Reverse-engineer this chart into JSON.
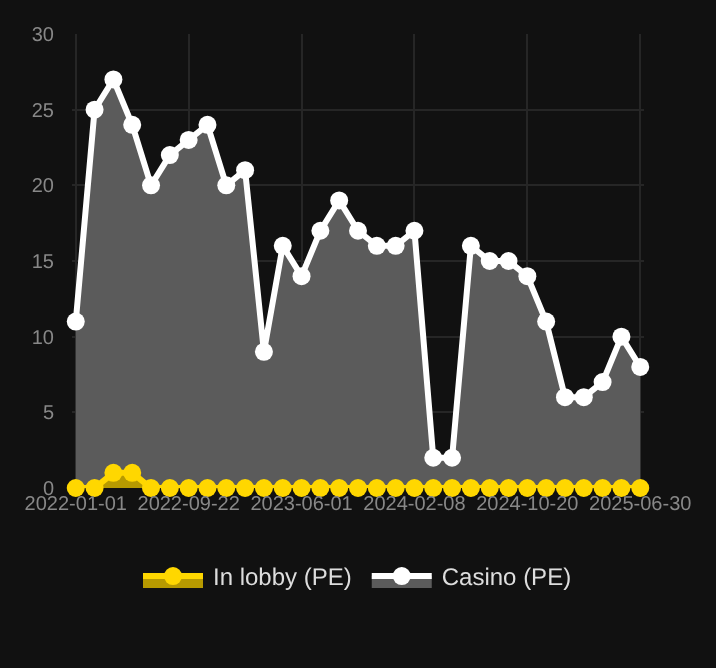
{
  "chart_data": {
    "type": "area",
    "categories": [
      "2022-01-01",
      null,
      null,
      null,
      null,
      null,
      "2022-09-22",
      null,
      null,
      null,
      null,
      null,
      "2023-06-01",
      null,
      null,
      null,
      null,
      null,
      "2024-02-08",
      null,
      null,
      null,
      null,
      null,
      "2024-10-20",
      null,
      null,
      null,
      null,
      null,
      "2025-06-30"
    ],
    "series": [
      {
        "name": "In lobby (PE)",
        "color": "#ffd700",
        "values": [
          0,
          0,
          1,
          1,
          0,
          0,
          0,
          0,
          0,
          0,
          0,
          0,
          0,
          0,
          0,
          0,
          0,
          0,
          0,
          0,
          0,
          0,
          0,
          0,
          0,
          0,
          0,
          0,
          0,
          0,
          0
        ]
      },
      {
        "name": "Casino (PE)",
        "color": "#ffffff",
        "values": [
          11,
          25,
          27,
          24,
          20,
          22,
          23,
          24,
          20,
          21,
          9,
          16,
          14,
          17,
          19,
          17,
          16,
          16,
          17,
          2,
          2,
          16,
          15,
          15,
          14,
          11,
          6,
          6,
          7,
          10,
          8
        ]
      }
    ],
    "ylim": [
      0,
      30
    ],
    "yticks": [
      0,
      5,
      10,
      15,
      20,
      25,
      30
    ],
    "grid": true,
    "legend": "bottom",
    "marker": "circle"
  }
}
